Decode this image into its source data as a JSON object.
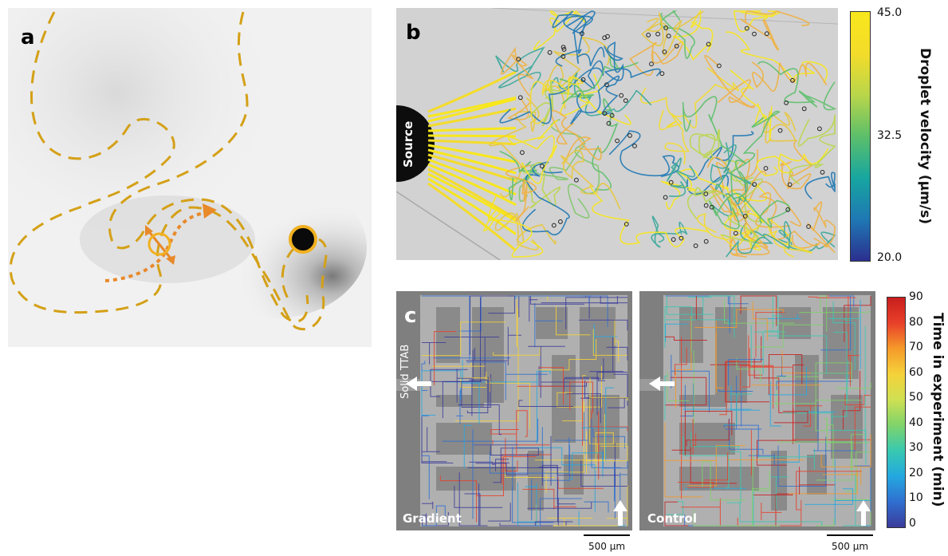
{
  "panel_a": {
    "label": "a",
    "dash_color": "#d4a017",
    "arrow_color": "#e8892a"
  },
  "panel_b": {
    "label": "b",
    "source_label": "Source",
    "colorbar": {
      "title": "Droplet velocity (µm/s)",
      "ticks": [
        "45.0",
        "32.5",
        "20.0"
      ],
      "min": 20.0,
      "max": 45.0,
      "colors": [
        "#2b2f8f",
        "#1f78b4",
        "#17a6a0",
        "#5cbf6a",
        "#b9d64a",
        "#f4dc2a",
        "#f8e71c"
      ]
    }
  },
  "panel_c": {
    "label": "c",
    "side_label": "Solid TTAB",
    "left_label": "Gradient",
    "right_label": "Control",
    "scale_left": "500 µm",
    "scale_right": "500 µm",
    "colorbar": {
      "title": "Time in experiment (min)",
      "ticks": [
        "90",
        "80",
        "70",
        "60",
        "50",
        "40",
        "30",
        "20",
        "10",
        "0"
      ],
      "min": 0,
      "max": 90,
      "colors": [
        "#3b3b9a",
        "#2f6fd0",
        "#24a8e0",
        "#38c9b0",
        "#7fd36a",
        "#cfe052",
        "#f5d23a",
        "#f59a2a",
        "#e8402a",
        "#c81e1e"
      ]
    }
  }
}
